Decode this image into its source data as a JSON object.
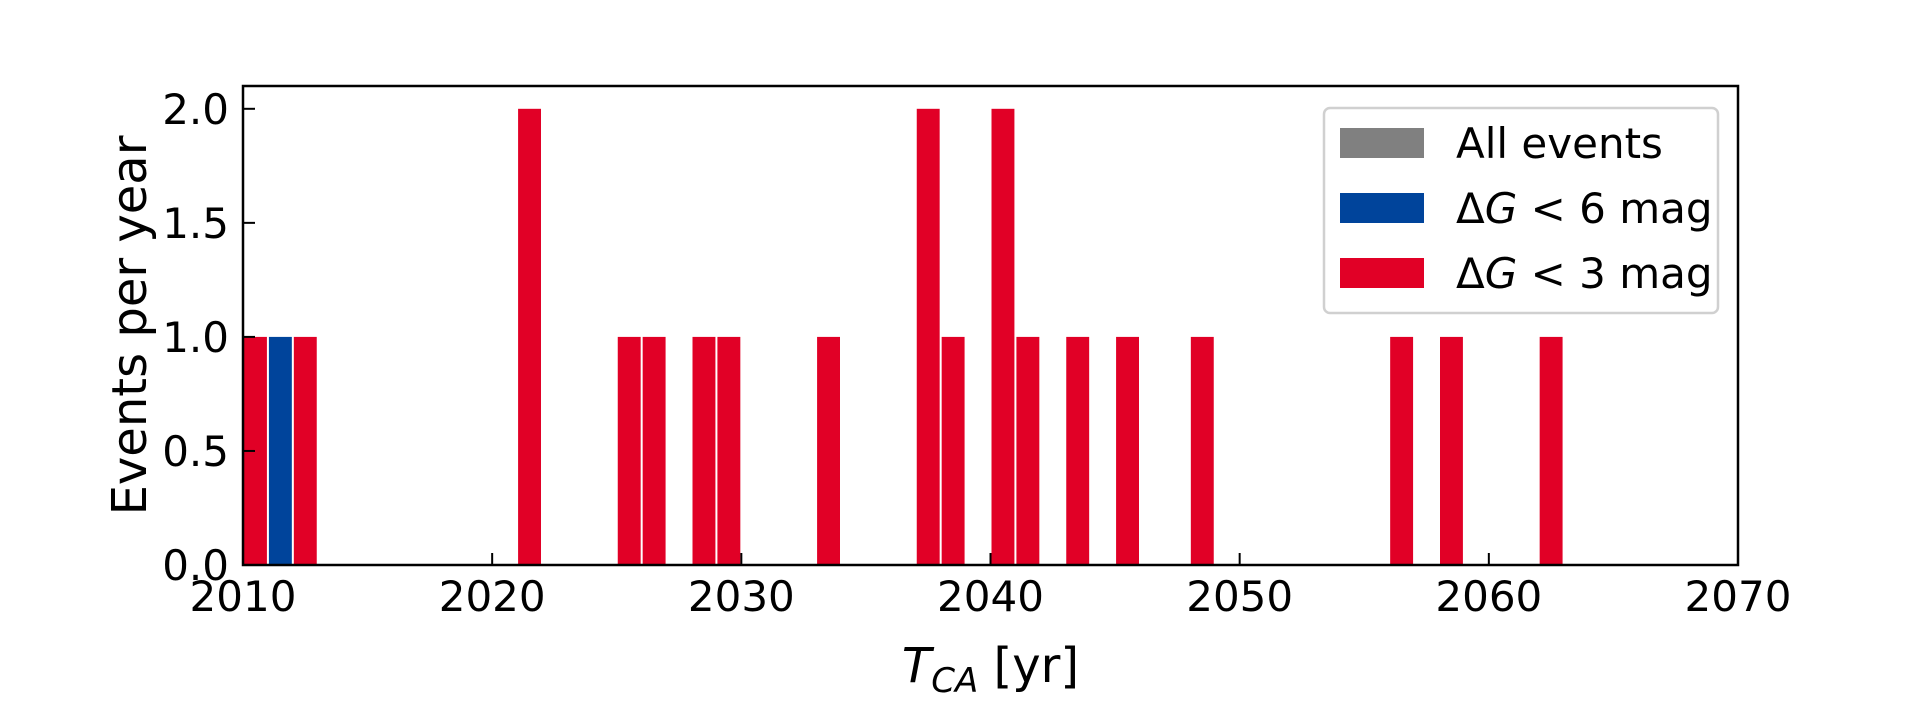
{
  "chart_data": {
    "type": "bar",
    "xlabel_main": "T",
    "xlabel_sub": "CA",
    "xlabel_unit": " [yr]",
    "ylabel": "Events per year",
    "xlim": [
      2010,
      2070
    ],
    "ylim": [
      0,
      2.1
    ],
    "xticks": [
      "2010",
      "2020",
      "2030",
      "2040",
      "2050",
      "2060",
      "2070"
    ],
    "yticks": [
      "0.0",
      "0.5",
      "1.0",
      "1.5",
      "2.0"
    ],
    "legend_position": "top-right",
    "grid": false,
    "bin_width": 1,
    "series": [
      {
        "name": "All events",
        "color": "#808080",
        "bins": [],
        "values": []
      },
      {
        "name": "ΔG < 6 mag",
        "name_parts": [
          "Δ",
          "G",
          " < 6 mag"
        ],
        "color": "#00449b",
        "bins": [
          2011
        ],
        "values": [
          1
        ]
      },
      {
        "name": "ΔG < 3 mag",
        "name_parts": [
          "Δ",
          "G",
          " < 3 mag"
        ],
        "color": "#e10026",
        "bins": [
          2010,
          2012,
          2021,
          2025,
          2026,
          2028,
          2029,
          2033,
          2037,
          2038,
          2040,
          2041,
          2043,
          2045,
          2048,
          2056,
          2058,
          2062
        ],
        "values": [
          1,
          1,
          2,
          1,
          1,
          1,
          1,
          1,
          2,
          1,
          2,
          1,
          1,
          1,
          1,
          1,
          1,
          1
        ]
      }
    ]
  }
}
